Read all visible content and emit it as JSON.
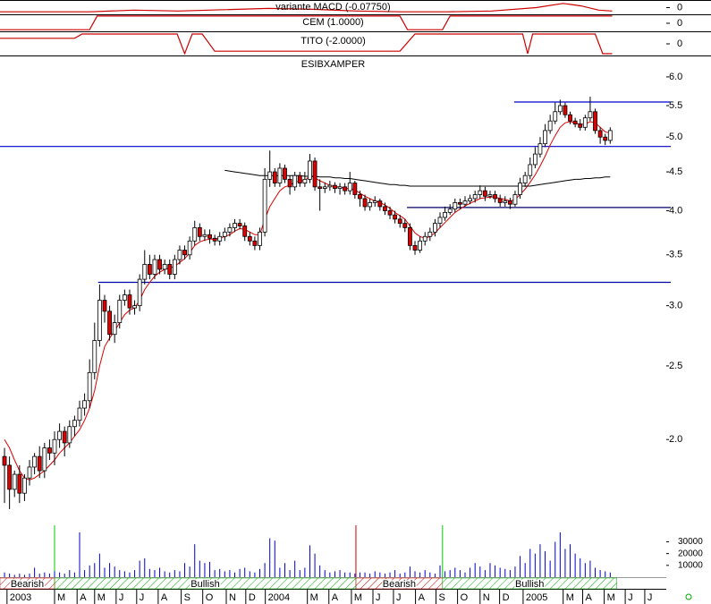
{
  "chart_data": [
    {
      "type": "line",
      "title": "variante MACD (-0.07750)",
      "xlim": [
        -0.9,
        132.2
      ],
      "ylim": [
        -1,
        1
      ],
      "yticks": [
        0
      ],
      "x": [
        -0.9,
        17,
        25.9,
        34.8,
        52.7,
        61.6,
        70.5,
        79.5,
        88.4,
        97.3,
        106.2,
        111.6,
        115.2,
        118.7,
        121.4
      ],
      "series": [
        {
          "color": "#cc0000",
          "values": [
            -0.625,
            -0.625,
            -0.375,
            -0.5,
            -0.125,
            -0.25,
            -0.5,
            -0.625,
            -0.625,
            -0.5,
            0,
            0.625,
            0.25,
            -0.375,
            -0.5
          ]
        }
      ]
    },
    {
      "type": "line",
      "title": "CEM (1.0000)",
      "xlim": [
        -0.9,
        132.2
      ],
      "ylim": [
        -1,
        1
      ],
      "yticks": [
        0
      ],
      "x": [
        -0.9,
        17,
        18.5,
        79,
        80.5,
        87.5,
        89,
        121.4
      ],
      "series": [
        {
          "color": "#cc0000",
          "values": [
            -0.8,
            -0.8,
            0.9,
            0.9,
            -0.8,
            -0.8,
            0.9,
            0.9
          ]
        }
      ]
    },
    {
      "type": "line",
      "title": "TITO (-2.0000)",
      "xlim": [
        -0.9,
        132.2
      ],
      "ylim": [
        -1,
        1
      ],
      "yticks": [
        0
      ],
      "x": [
        -0.9,
        14,
        15.5,
        34.5,
        36,
        37.5,
        39.5,
        42,
        79,
        82,
        103.5,
        104.5,
        105.5,
        118,
        119.5,
        121.4
      ],
      "series": [
        {
          "color": "#cc0000",
          "values": [
            0.48,
            0.48,
            0.85,
            0.85,
            -0.85,
            0.85,
            0.85,
            -0.63,
            -0.63,
            0.85,
            0.85,
            -0.85,
            0.85,
            0.85,
            -0.85,
            -0.85
          ]
        }
      ]
    },
    {
      "type": "candlestick",
      "title": "ESIBXAMPER",
      "xlim": [
        -0.9,
        132.2
      ],
      "ylim": [
        1.551,
        6.385
      ],
      "log_scale": true,
      "yticks": [
        {
          "value": 6,
          "label": "6.0"
        },
        5.5,
        {
          "value": 5,
          "label": "5.0"
        },
        4.5,
        {
          "value": 4,
          "label": "4.0"
        },
        3.5,
        {
          "value": 3,
          "label": "3.0"
        },
        2.5,
        {
          "value": 2,
          "label": "2.0"
        }
      ],
      "xticks": [
        {
          "value": 0.5,
          "label": "2003"
        },
        {
          "value": 10,
          "label": "M"
        },
        {
          "value": 14.5,
          "label": "A"
        },
        {
          "value": 18,
          "label": "M"
        },
        {
          "value": 22.3,
          "label": "J"
        },
        {
          "value": 26.4,
          "label": "J"
        },
        {
          "value": 30.7,
          "label": "A"
        },
        {
          "value": 35.3,
          "label": "S"
        },
        {
          "value": 39.6,
          "label": "O"
        },
        {
          "value": 44.3,
          "label": "N"
        },
        {
          "value": 48.2,
          "label": "D"
        },
        {
          "value": 52.1,
          "label": "2004"
        },
        {
          "value": 60.5,
          "label": "M"
        },
        {
          "value": 64.8,
          "label": "A"
        },
        {
          "value": 69.3,
          "label": "M"
        },
        {
          "value": 73.6,
          "label": "J"
        },
        {
          "value": 77.7,
          "label": "J"
        },
        {
          "value": 82.1,
          "label": "A"
        },
        {
          "value": 86.2,
          "label": "S"
        },
        {
          "value": 90.5,
          "label": "O"
        },
        {
          "value": 95,
          "label": "N"
        },
        {
          "value": 98.9,
          "label": "D"
        },
        {
          "value": 103.6,
          "label": "2005"
        },
        {
          "value": 111.6,
          "label": "M"
        },
        {
          "value": 115.5,
          "label": "A"
        },
        {
          "value": 119.8,
          "label": "M"
        },
        {
          "value": 124,
          "label": "J"
        },
        {
          "value": 127.9,
          "label": "J"
        }
      ],
      "up_color": "#ffffff",
      "down_color": "#e00000",
      "open": [
        1.9,
        1.85,
        1.72,
        1.8,
        1.7,
        1.78,
        1.84,
        1.9,
        1.82,
        1.95,
        1.92,
        2.0,
        2.05,
        1.98,
        2.08,
        2.12,
        2.2,
        2.25,
        2.45,
        2.7,
        3.05,
        2.95,
        2.75,
        2.85,
        3.05,
        3.1,
        2.98,
        3.0,
        3.25,
        3.4,
        3.3,
        3.45,
        3.35,
        3.4,
        3.3,
        3.45,
        3.55,
        3.5,
        3.65,
        3.8,
        3.7,
        3.72,
        3.68,
        3.65,
        3.7,
        3.75,
        3.8,
        3.85,
        3.82,
        3.7,
        3.65,
        3.6,
        3.75,
        4.4,
        4.5,
        4.35,
        4.55,
        4.4,
        4.3,
        4.45,
        4.35,
        4.4,
        4.65,
        4.3,
        4.28,
        4.3,
        4.32,
        4.28,
        4.3,
        4.25,
        4.35,
        4.2,
        4.15,
        4.05,
        4.1,
        4.12,
        4.05,
        4.0,
        3.95,
        3.9,
        3.85,
        3.8,
        3.6,
        3.55,
        3.65,
        3.7,
        3.75,
        3.85,
        3.92,
        3.98,
        4.02,
        4.1,
        4.08,
        4.12,
        4.15,
        4.2,
        4.25,
        4.18,
        4.2,
        4.15,
        4.1,
        4.12,
        4.08,
        4.2,
        4.35,
        4.45,
        4.6,
        4.75,
        4.9,
        5.1,
        5.25,
        5.4,
        5.5,
        5.35,
        5.25,
        5.2,
        5.15,
        5.3,
        5.4,
        5.1,
        5.0,
        4.95
      ],
      "high": [
        1.95,
        1.9,
        1.82,
        1.85,
        1.8,
        1.88,
        1.92,
        1.96,
        1.98,
        2.0,
        2.05,
        2.1,
        2.08,
        2.12,
        2.15,
        2.25,
        2.3,
        2.55,
        2.85,
        3.2,
        3.1,
        3.0,
        2.92,
        3.1,
        3.15,
        3.15,
        3.05,
        3.3,
        3.55,
        3.5,
        3.5,
        3.5,
        3.45,
        3.45,
        3.5,
        3.6,
        3.6,
        3.7,
        3.88,
        3.85,
        3.78,
        3.78,
        3.72,
        3.75,
        3.8,
        3.85,
        3.9,
        3.9,
        3.86,
        3.75,
        3.7,
        3.8,
        4.55,
        4.8,
        4.55,
        4.62,
        4.6,
        4.45,
        4.5,
        4.5,
        4.5,
        4.75,
        4.7,
        4.4,
        4.36,
        4.38,
        4.36,
        4.35,
        4.35,
        4.5,
        4.38,
        4.25,
        4.2,
        4.15,
        4.18,
        4.15,
        4.1,
        4.05,
        4.0,
        3.95,
        3.9,
        3.85,
        3.65,
        3.7,
        3.75,
        3.8,
        3.9,
        3.98,
        4.05,
        4.08,
        4.15,
        4.15,
        4.18,
        4.2,
        4.25,
        4.32,
        4.3,
        4.25,
        4.25,
        4.2,
        4.18,
        4.16,
        4.25,
        4.42,
        4.5,
        4.7,
        4.85,
        5.0,
        5.2,
        5.35,
        5.55,
        5.6,
        5.55,
        5.4,
        5.3,
        5.28,
        5.35,
        5.65,
        5.45,
        5.15,
        5.05,
        5.15
      ],
      "low": [
        1.65,
        1.62,
        1.68,
        1.65,
        1.66,
        1.74,
        1.8,
        1.78,
        1.78,
        1.88,
        1.85,
        1.95,
        1.9,
        1.95,
        2.02,
        2.08,
        2.15,
        2.2,
        2.4,
        2.65,
        2.85,
        2.7,
        2.68,
        2.8,
        3.0,
        2.92,
        2.92,
        2.95,
        3.2,
        3.25,
        3.25,
        3.3,
        3.3,
        3.25,
        3.25,
        3.4,
        3.45,
        3.45,
        3.6,
        3.65,
        3.65,
        3.62,
        3.6,
        3.6,
        3.65,
        3.7,
        3.75,
        3.78,
        3.65,
        3.6,
        3.55,
        3.55,
        3.7,
        4.3,
        4.3,
        4.3,
        4.35,
        4.2,
        4.25,
        4.3,
        4.3,
        4.35,
        4.25,
        4.0,
        4.22,
        4.25,
        4.22,
        4.2,
        4.2,
        4.2,
        4.15,
        4.05,
        4.0,
        4.0,
        4.05,
        4.0,
        3.95,
        3.9,
        3.85,
        3.8,
        3.75,
        3.55,
        3.5,
        3.52,
        3.6,
        3.65,
        3.7,
        3.8,
        3.88,
        3.95,
        3.98,
        4.02,
        4.05,
        4.08,
        4.1,
        4.15,
        4.12,
        4.15,
        4.1,
        4.05,
        4.05,
        4.02,
        4.05,
        4.15,
        4.3,
        4.4,
        4.55,
        4.7,
        4.85,
        5.05,
        5.2,
        5.35,
        5.3,
        5.2,
        5.15,
        5.1,
        5.1,
        5.25,
        5.05,
        4.9,
        4.88,
        4.9
      ],
      "close": [
        1.85,
        1.72,
        1.8,
        1.7,
        1.78,
        1.84,
        1.9,
        1.82,
        1.95,
        1.92,
        2.0,
        2.05,
        1.98,
        2.08,
        2.12,
        2.2,
        2.25,
        2.45,
        2.7,
        3.05,
        2.95,
        2.75,
        2.85,
        3.05,
        3.1,
        2.98,
        3.0,
        3.25,
        3.4,
        3.3,
        3.45,
        3.35,
        3.4,
        3.3,
        3.45,
        3.55,
        3.5,
        3.65,
        3.8,
        3.7,
        3.72,
        3.68,
        3.65,
        3.7,
        3.75,
        3.8,
        3.85,
        3.82,
        3.7,
        3.65,
        3.6,
        3.75,
        4.4,
        4.5,
        4.35,
        4.55,
        4.4,
        4.3,
        4.45,
        4.35,
        4.4,
        4.65,
        4.3,
        4.28,
        4.3,
        4.32,
        4.28,
        4.3,
        4.25,
        4.35,
        4.2,
        4.15,
        4.05,
        4.1,
        4.12,
        4.05,
        4.0,
        3.95,
        3.9,
        3.85,
        3.8,
        3.6,
        3.55,
        3.65,
        3.7,
        3.75,
        3.85,
        3.92,
        3.98,
        4.02,
        4.1,
        4.08,
        4.12,
        4.15,
        4.2,
        4.25,
        4.18,
        4.2,
        4.15,
        4.1,
        4.12,
        4.08,
        4.2,
        4.35,
        4.45,
        4.6,
        4.75,
        4.9,
        5.1,
        5.25,
        5.4,
        5.5,
        5.35,
        5.25,
        5.2,
        5.15,
        5.3,
        5.4,
        5.1,
        5.0,
        4.95,
        5.1
      ],
      "lines": [
        {
          "color": "#dd0000",
          "values": [
            2.0,
            1.95,
            1.88,
            1.82,
            1.78,
            1.77,
            1.78,
            1.8,
            1.82,
            1.85,
            1.88,
            1.92,
            1.95,
            1.98,
            2.02,
            2.06,
            2.12,
            2.2,
            2.32,
            2.5,
            2.65,
            2.72,
            2.78,
            2.85,
            2.92,
            2.96,
            2.98,
            3.05,
            3.15,
            3.22,
            3.28,
            3.32,
            3.35,
            3.36,
            3.38,
            3.42,
            3.46,
            3.52,
            3.6,
            3.64,
            3.66,
            3.67,
            3.67,
            3.68,
            3.7,
            3.72,
            3.76,
            3.79,
            3.78,
            3.75,
            3.72,
            3.72,
            3.9,
            4.05,
            4.15,
            4.25,
            4.3,
            4.32,
            4.36,
            4.38,
            4.38,
            4.45,
            4.42,
            4.38,
            4.35,
            4.32,
            4.3,
            4.3,
            4.28,
            4.28,
            4.26,
            4.22,
            4.18,
            4.15,
            4.12,
            4.1,
            4.07,
            4.03,
            3.98,
            3.94,
            3.9,
            3.82,
            3.74,
            3.7,
            3.68,
            3.7,
            3.74,
            3.8,
            3.86,
            3.92,
            3.98,
            4.02,
            4.06,
            4.09,
            4.12,
            4.15,
            4.16,
            4.17,
            4.17,
            4.15,
            4.14,
            4.12,
            4.14,
            4.2,
            4.27,
            4.36,
            4.46,
            4.58,
            4.72,
            4.88,
            5.02,
            5.15,
            5.22,
            5.24,
            5.22,
            5.2,
            5.2,
            5.24,
            5.22,
            5.15,
            5.08,
            5.06
          ]
        },
        {
          "color": "#000000",
          "values": [
            null,
            null,
            null,
            null,
            null,
            null,
            null,
            null,
            null,
            null,
            null,
            null,
            null,
            null,
            null,
            null,
            null,
            null,
            null,
            null,
            null,
            null,
            null,
            null,
            null,
            null,
            null,
            null,
            null,
            null,
            null,
            null,
            null,
            null,
            null,
            null,
            null,
            null,
            null,
            null,
            null,
            null,
            null,
            null,
            4.52,
            4.51,
            4.5,
            4.49,
            4.48,
            4.47,
            4.46,
            4.45,
            4.45,
            4.45,
            4.45,
            4.45,
            4.45,
            4.45,
            4.45,
            4.45,
            4.44,
            4.44,
            4.44,
            4.43,
            4.43,
            4.43,
            4.42,
            4.42,
            4.41,
            4.41,
            4.4,
            4.39,
            4.38,
            4.37,
            4.36,
            4.35,
            4.34,
            4.33,
            4.33,
            4.32,
            4.32,
            4.31,
            4.31,
            4.31,
            4.31,
            4.31,
            4.31,
            4.31,
            4.31,
            4.31,
            4.31,
            4.31,
            4.31,
            4.31,
            4.31,
            4.31,
            4.31,
            4.31,
            4.31,
            4.31,
            4.31,
            4.31,
            4.31,
            4.31,
            4.31,
            4.31,
            4.32,
            4.33,
            4.34,
            4.35,
            4.36,
            4.37,
            4.38,
            4.39,
            4.4,
            4.4,
            4.41,
            4.41,
            4.42,
            4.42,
            4.43,
            4.43
          ]
        }
      ],
      "hlines": [
        {
          "value": 5.56,
          "start": 101.8,
          "color": "#0000cc"
        },
        {
          "value": 4.86,
          "start": -0.9,
          "color": "#0000cc"
        },
        {
          "value": 4.04,
          "start": 80.4,
          "color": "#000066"
        },
        {
          "value": 3.22,
          "start": 18.7,
          "color": "#0000aa"
        }
      ],
      "volume": {
        "color": "#0000cc",
        "ylim": [
          0,
          38000
        ],
        "yticks": [
          10000,
          20000,
          30000
        ],
        "values": [
          4000,
          3000,
          2000,
          3000,
          2000,
          3000,
          8000,
          3000,
          4000,
          3000,
          5000,
          4000,
          3000,
          6000,
          4000,
          38000,
          6000,
          10000,
          12000,
          20000,
          8000,
          12000,
          9000,
          6000,
          5000,
          4000,
          6000,
          14000,
          16000,
          7000,
          6000,
          8000,
          5000,
          4000,
          6000,
          5000,
          12000,
          9000,
          28000,
          14000,
          12000,
          13000,
          6000,
          7000,
          5000,
          6000,
          4000,
          7000,
          8000,
          5000,
          4000,
          7000,
          12000,
          33000,
          31000,
          8000,
          12000,
          6000,
          14000,
          6000,
          8000,
          27000,
          20000,
          10000,
          6000,
          4000,
          5000,
          6000,
          4000,
          4000,
          3000,
          4000,
          4000,
          3000,
          5000,
          4000,
          3000,
          4000,
          6000,
          3000,
          4000,
          9000,
          5000,
          4000,
          6000,
          4000,
          3000,
          10000,
          5000,
          6000,
          8000,
          6000,
          4000,
          8000,
          12000,
          9000,
          6000,
          12000,
          10000,
          8000,
          7000,
          6000,
          9000,
          18000,
          12000,
          24000,
          20000,
          28000,
          22000,
          14000,
          30000,
          38000,
          24000,
          28000,
          20000,
          16000,
          12000,
          14000,
          8000,
          6000,
          5000,
          4000
        ],
        "markers": [
          {
            "x": 10,
            "color": "#00cc00"
          },
          {
            "x": 70.2,
            "color": "#cc0000"
          },
          {
            "x": 87.5,
            "color": "#00cc00"
          }
        ]
      },
      "signals": [
        {
          "label": "Bearish",
          "start": -0.9,
          "end": 10,
          "color": "#cc0000"
        },
        {
          "label": "Bullish",
          "start": 10,
          "end": 70.2,
          "color": "#00aa00"
        },
        {
          "label": "Bearish",
          "start": 70.2,
          "end": 87.5,
          "color": "#cc0000"
        },
        {
          "label": "Bullish",
          "start": 87.5,
          "end": 122.3,
          "color": "#00aa00"
        }
      ]
    }
  ]
}
